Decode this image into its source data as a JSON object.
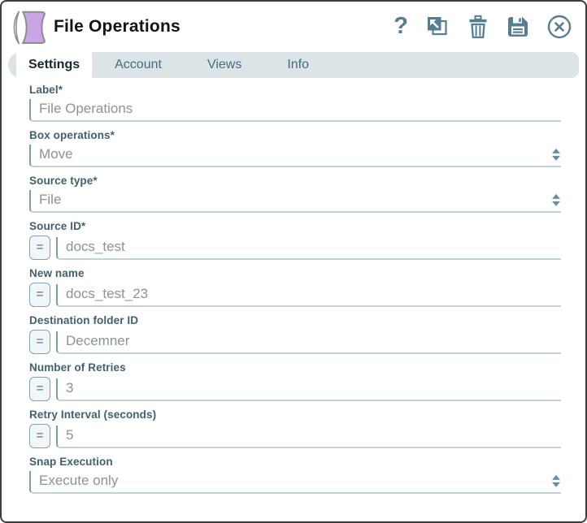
{
  "dialog": {
    "title": "File Operations"
  },
  "header_icons": [
    {
      "name": "help-icon",
      "glyph": "?"
    },
    {
      "name": "popout-icon"
    },
    {
      "name": "delete-icon"
    },
    {
      "name": "save-icon"
    },
    {
      "name": "close-icon"
    }
  ],
  "tabs": [
    {
      "label": "Settings",
      "active": true
    },
    {
      "label": "Account",
      "active": false
    },
    {
      "label": "Views",
      "active": false
    },
    {
      "label": "Info",
      "active": false
    }
  ],
  "form": {
    "expression_toggle_label": "=",
    "fields": [
      {
        "label": "Label*",
        "type": "text",
        "value": "File Operations",
        "expression_toggle": false
      },
      {
        "label": "Box operations*",
        "type": "select",
        "value": "Move"
      },
      {
        "label": "Source type*",
        "type": "select",
        "value": "File"
      },
      {
        "label": "Source ID*",
        "type": "text",
        "value": "docs_test",
        "expression_toggle": true
      },
      {
        "label": "New name",
        "type": "text",
        "value": "docs_test_23",
        "expression_toggle": true
      },
      {
        "label": "Destination folder ID",
        "type": "text",
        "value": "Decemner",
        "expression_toggle": true
      },
      {
        "label": "Number of Retries",
        "type": "text",
        "value": "3",
        "expression_toggle": true
      },
      {
        "label": "Retry Interval (seconds)",
        "type": "text",
        "value": "5",
        "expression_toggle": true
      },
      {
        "label": "Snap Execution",
        "type": "select",
        "value": "Execute only"
      }
    ]
  },
  "colors": {
    "accent_slate": "#567e92",
    "snap_purple": "#c9a5e6",
    "snap_outline": "#8b8b8b",
    "label_text": "#42606d",
    "value_text": "#8d9297",
    "tab_bar_bg": "#dde4e7",
    "tab_inactive_text": "#41707f",
    "input_border_left": "#7e9dab",
    "input_border_bottom": "#bed3dc",
    "dialog_border": "#3d3d3d"
  }
}
